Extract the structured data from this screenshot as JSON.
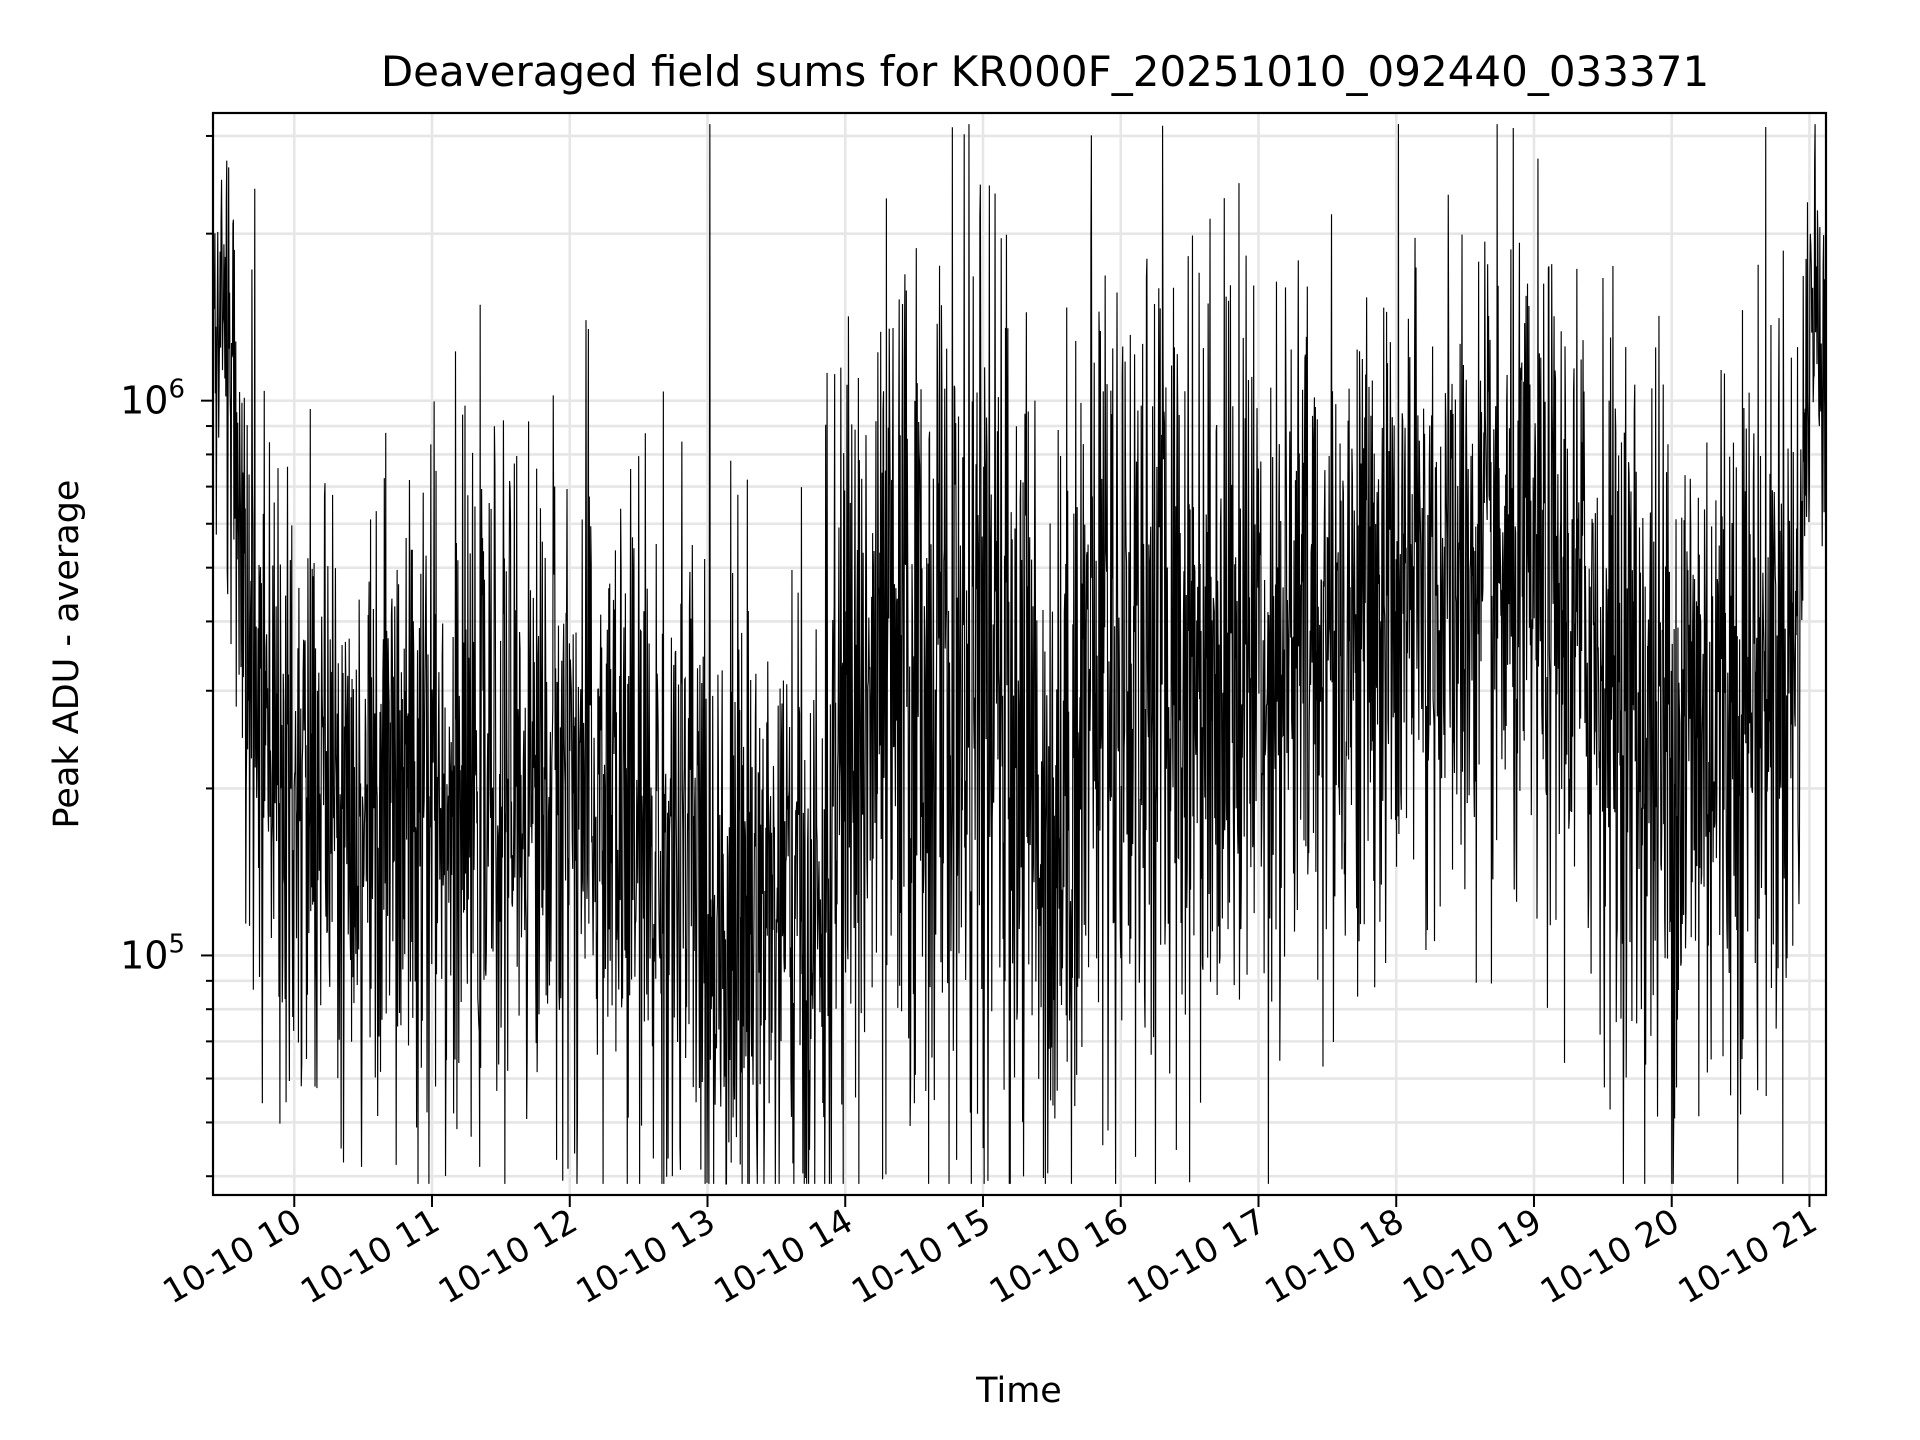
{
  "chart_data": {
    "type": "line",
    "title": "Deaveraged field sums for KR000F_20251010_092440_033371",
    "xlabel": "Time",
    "ylabel": "Peak ADU - average",
    "yscale": "log",
    "ylim": [
      37000,
      3300000
    ],
    "xlim_hours": [
      9.41,
      21.12
    ],
    "grid": true,
    "x_tick_values": [
      10,
      11,
      12,
      13,
      14,
      15,
      16,
      17,
      18,
      19,
      20,
      21
    ],
    "x_tick_labels": [
      "10-10 10",
      "10-10 11",
      "10-10 12",
      "10-10 13",
      "10-10 14",
      "10-10 15",
      "10-10 16",
      "10-10 17",
      "10-10 18",
      "10-10 19",
      "10-10 20",
      "10-10 21"
    ],
    "y_major_ticks": [
      {
        "value": 100000,
        "base": "10",
        "exponent": "5"
      },
      {
        "value": 1000000,
        "base": "10",
        "exponent": "6"
      }
    ],
    "series": [
      {
        "name": "Peak ADU - average",
        "color": "#000000",
        "n_points": 3400,
        "seed": 33371,
        "time_hours": [
          9.41,
          9.5,
          9.55,
          9.6,
          9.65,
          9.7,
          9.8,
          10.0,
          10.5,
          11.0,
          11.5,
          12.0,
          12.5,
          13.0,
          13.5,
          13.8,
          14.0,
          14.5,
          15.0,
          15.3,
          15.5,
          15.8,
          16.0,
          16.5,
          17.0,
          17.5,
          18.0,
          18.5,
          19.0,
          19.5,
          19.8,
          20.0,
          20.5,
          20.7,
          20.85,
          20.92,
          21.0,
          21.12
        ],
        "median_adu": [
          1500000,
          1500000,
          1400000,
          800000,
          400000,
          300000,
          250000,
          200000,
          160000,
          170000,
          200000,
          210000,
          160000,
          130000,
          120000,
          100000,
          250000,
          300000,
          300000,
          250000,
          160000,
          350000,
          330000,
          350000,
          350000,
          380000,
          420000,
          450000,
          450000,
          350000,
          250000,
          230000,
          300000,
          320000,
          350000,
          380000,
          1400000,
          1500000
        ],
        "log10_spread": [
          0.2,
          0.2,
          0.2,
          0.28,
          0.32,
          0.32,
          0.32,
          0.3,
          0.28,
          0.28,
          0.28,
          0.3,
          0.33,
          0.33,
          0.33,
          0.3,
          0.4,
          0.4,
          0.42,
          0.4,
          0.35,
          0.4,
          0.4,
          0.38,
          0.35,
          0.32,
          0.3,
          0.3,
          0.3,
          0.32,
          0.35,
          0.38,
          0.35,
          0.35,
          0.35,
          0.3,
          0.2,
          0.2
        ]
      }
    ]
  }
}
